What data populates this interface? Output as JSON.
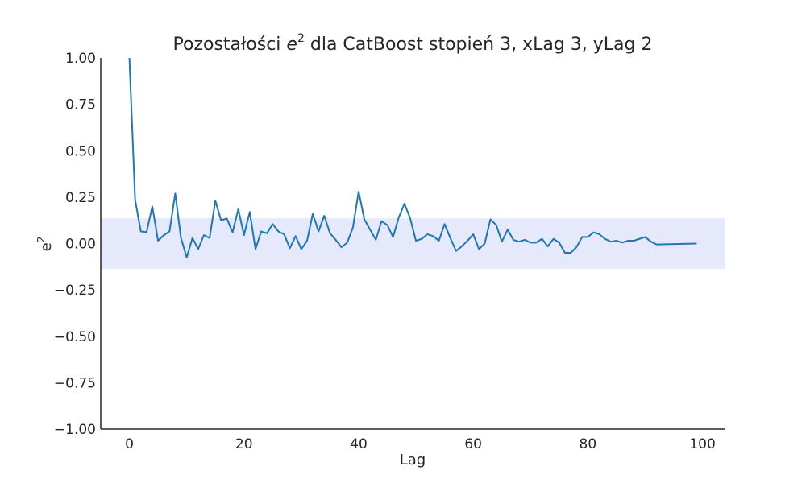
{
  "chart_data": {
    "type": "line",
    "title_prefix": "Pozostałości ",
    "title_var": "e",
    "title_sup": "2",
    "title_suffix": " dla CatBoost stopień 3, xLag 3, yLag 2",
    "xlabel": "Lag",
    "ylabel_var": "e",
    "ylabel_sup": "2",
    "xlim": [
      -5,
      104
    ],
    "ylim": [
      -1.0,
      1.0
    ],
    "xticks": [
      0,
      20,
      40,
      60,
      80,
      100
    ],
    "yticks": [
      "-1.00",
      "-0.75",
      "-0.50",
      "-0.25",
      "0.00",
      "0.25",
      "0.50",
      "0.75",
      "1.00"
    ],
    "confidence_band": [
      -0.136,
      0.136
    ],
    "grid": false,
    "colors": {
      "line": "#1f77b4",
      "band": "#e5e9fb",
      "axis": "#262626"
    },
    "series": [
      {
        "x": [
          0,
          1,
          2,
          3,
          4,
          5,
          6,
          7,
          8,
          9,
          10,
          11,
          12,
          13,
          14,
          15,
          16,
          17,
          18,
          19,
          20,
          21,
          22,
          23,
          24,
          25,
          26,
          27,
          28,
          29,
          30,
          31,
          32,
          33,
          34,
          35,
          36,
          37,
          38,
          39,
          40,
          41,
          42,
          43,
          44,
          45,
          46,
          47,
          48,
          49,
          50,
          51,
          52,
          53,
          54,
          55,
          56,
          57,
          58,
          59,
          60,
          61,
          62,
          63,
          64,
          65,
          66,
          67,
          68,
          69,
          70,
          71,
          72,
          73,
          74,
          75,
          76,
          77,
          78,
          79,
          80,
          81,
          82,
          83,
          84,
          85,
          86,
          87,
          88,
          89,
          90,
          91,
          92,
          99
        ],
        "values": [
          1.0,
          0.235,
          0.065,
          0.062,
          0.2,
          0.015,
          0.045,
          0.065,
          0.27,
          0.03,
          -0.075,
          0.03,
          -0.03,
          0.045,
          0.03,
          0.23,
          0.125,
          0.135,
          0.06,
          0.185,
          0.045,
          0.17,
          -0.03,
          0.065,
          0.055,
          0.105,
          0.065,
          0.05,
          -0.025,
          0.04,
          -0.03,
          0.015,
          0.16,
          0.065,
          0.15,
          0.055,
          0.02,
          -0.02,
          0.005,
          0.085,
          0.28,
          0.13,
          0.075,
          0.02,
          0.12,
          0.1,
          0.035,
          0.14,
          0.215,
          0.135,
          0.015,
          0.025,
          0.05,
          0.04,
          0.015,
          0.105,
          0.03,
          -0.04,
          -0.015,
          0.015,
          0.05,
          -0.03,
          0.0,
          0.13,
          0.1,
          0.01,
          0.075,
          0.02,
          0.01,
          0.02,
          0.005,
          0.005,
          0.025,
          -0.015,
          0.025,
          0.005,
          -0.05,
          -0.05,
          -0.02,
          0.035,
          0.035,
          0.06,
          0.05,
          0.025,
          0.01,
          0.015,
          0.005,
          0.015,
          0.015,
          0.025,
          0.035,
          0.01,
          -0.005,
          0.0
        ]
      }
    ]
  }
}
